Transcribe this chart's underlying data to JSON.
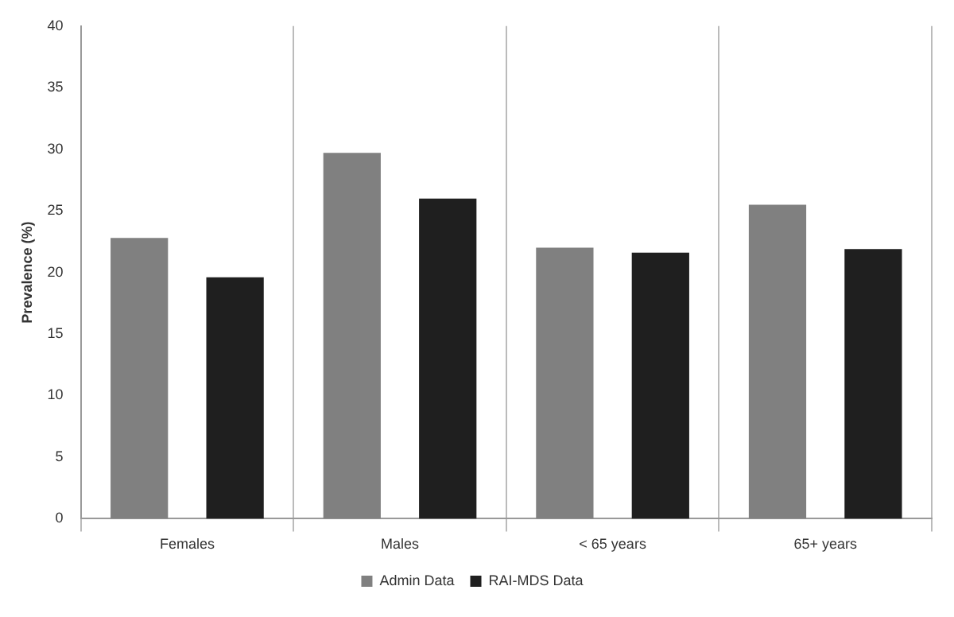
{
  "chart_data": {
    "type": "bar",
    "ylabel": "Prevalence (%)",
    "categories": [
      "Females",
      "Males",
      "< 65 years",
      "65+ years"
    ],
    "series": [
      {
        "name": "Admin Data",
        "color": "#808080",
        "values": [
          22.8,
          29.7,
          22.0,
          25.5
        ]
      },
      {
        "name": "RAI-MDS Data",
        "color": "#1f1f1f",
        "values": [
          19.6,
          26.0,
          21.6,
          21.9
        ]
      }
    ],
    "ylim": [
      0,
      40
    ],
    "yticks": [
      0,
      5,
      10,
      15,
      20,
      25,
      30,
      35,
      40
    ],
    "grid": "x",
    "legend": "bottom"
  }
}
